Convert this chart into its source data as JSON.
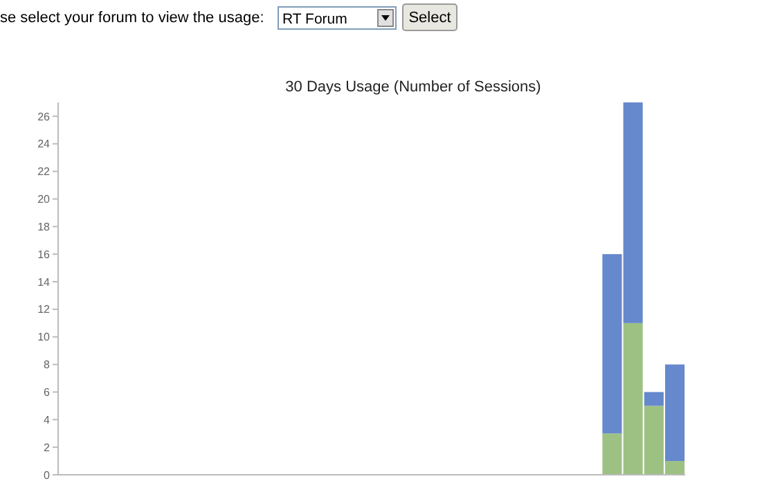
{
  "chart_data": {
    "type": "bar",
    "title": "30 Days Usage (Number of Sessions)",
    "annotations": [
      "se select your forum to view the usage:",
      "RT Forum",
      "Select"
    ],
    "categories": [
      null,
      null,
      null,
      null,
      null,
      null,
      null,
      null,
      null,
      null,
      null,
      null,
      null,
      null,
      null,
      null,
      null,
      null,
      null,
      null,
      null,
      null,
      null,
      null,
      null,
      null,
      null,
      null,
      null,
      null
    ],
    "series": [
      {
        "color": "#9dc183",
        "values": [
          0,
          0,
          0,
          0,
          0,
          0,
          0,
          0,
          0,
          0,
          0,
          0,
          0,
          0,
          0,
          0,
          0,
          0,
          0,
          0,
          0,
          0,
          0,
          0,
          0,
          0,
          3,
          11,
          5,
          1
        ]
      },
      {
        "color": "#6688cc",
        "values": [
          0,
          0,
          0,
          0,
          0,
          0,
          0,
          0,
          0,
          0,
          0,
          0,
          0,
          0,
          0,
          0,
          0,
          0,
          0,
          0,
          0,
          0,
          0,
          0,
          0,
          0,
          13,
          16,
          1,
          7
        ]
      }
    ],
    "stacked": true,
    "ylim": [
      0,
      27
    ],
    "yticks": [
      0,
      2,
      4,
      6,
      8,
      10,
      12,
      14,
      16,
      18,
      20,
      22,
      24,
      26
    ],
    "grid": false
  }
}
